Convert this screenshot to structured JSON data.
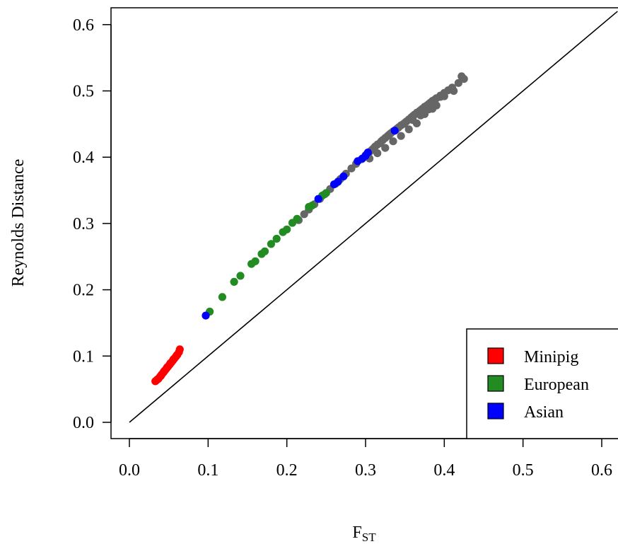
{
  "chart_data": {
    "type": "scatter",
    "title": "",
    "xlabel": "F",
    "xlabel_sub": "ST",
    "ylabel": "Reynolds Distance",
    "xlim": [
      -0.025,
      0.62
    ],
    "ylim": [
      -0.025,
      0.62
    ],
    "xticks": [
      0.0,
      0.1,
      0.2,
      0.3,
      0.4,
      0.5,
      0.6
    ],
    "yticks": [
      0.0,
      0.1,
      0.2,
      0.3,
      0.4,
      0.5,
      0.6
    ],
    "xtick_labels": [
      "0.0",
      "0.1",
      "0.2",
      "0.3",
      "0.4",
      "0.5",
      "0.6"
    ],
    "ytick_labels": [
      "0.0",
      "0.1",
      "0.2",
      "0.3",
      "0.4",
      "0.5",
      "0.6"
    ],
    "grid": false,
    "reference_line": {
      "x": [
        0,
        0.62
      ],
      "y": [
        0,
        0.62
      ],
      "color": "#000000"
    },
    "legend": {
      "position": "bottom-right",
      "entries": [
        "Minipig",
        "European",
        "Asian"
      ]
    },
    "series": [
      {
        "name": "Other",
        "color": "#666666",
        "in_legend": false,
        "x": [
          0.215,
          0.222,
          0.228,
          0.235,
          0.242,
          0.248,
          0.255,
          0.262,
          0.268,
          0.275,
          0.282,
          0.288,
          0.295,
          0.3,
          0.302,
          0.305,
          0.308,
          0.31,
          0.312,
          0.315,
          0.318,
          0.32,
          0.322,
          0.325,
          0.328,
          0.33,
          0.332,
          0.335,
          0.338,
          0.34,
          0.342,
          0.345,
          0.348,
          0.35,
          0.352,
          0.355,
          0.358,
          0.36,
          0.362,
          0.365,
          0.368,
          0.37,
          0.372,
          0.375,
          0.378,
          0.38,
          0.382,
          0.385,
          0.388,
          0.39,
          0.395,
          0.4,
          0.405,
          0.41,
          0.418,
          0.425,
          0.36,
          0.37,
          0.38,
          0.39,
          0.375,
          0.385,
          0.365,
          0.355,
          0.345,
          0.335,
          0.325,
          0.315,
          0.305,
          0.395,
          0.4,
          0.412,
          0.422
        ],
        "y": [
          0.305,
          0.314,
          0.321,
          0.329,
          0.337,
          0.344,
          0.352,
          0.36,
          0.367,
          0.375,
          0.383,
          0.39,
          0.397,
          0.403,
          0.405,
          0.408,
          0.411,
          0.413,
          0.416,
          0.419,
          0.421,
          0.424,
          0.426,
          0.429,
          0.432,
          0.434,
          0.436,
          0.439,
          0.441,
          0.443,
          0.445,
          0.448,
          0.45,
          0.452,
          0.454,
          0.457,
          0.46,
          0.462,
          0.464,
          0.467,
          0.469,
          0.471,
          0.473,
          0.476,
          0.478,
          0.48,
          0.482,
          0.485,
          0.487,
          0.489,
          0.493,
          0.497,
          0.501,
          0.505,
          0.512,
          0.518,
          0.456,
          0.463,
          0.472,
          0.478,
          0.465,
          0.473,
          0.451,
          0.442,
          0.432,
          0.424,
          0.414,
          0.406,
          0.398,
          0.491,
          0.492,
          0.5,
          0.522
        ]
      },
      {
        "name": "Minipig",
        "color": "#ff0000",
        "in_legend": true,
        "x": [
          0.033,
          0.035,
          0.037,
          0.039,
          0.041,
          0.043,
          0.045,
          0.047,
          0.049,
          0.051,
          0.053,
          0.055,
          0.057,
          0.059,
          0.061,
          0.063,
          0.064,
          0.036,
          0.04,
          0.044,
          0.048,
          0.052,
          0.056,
          0.06
        ],
        "y": [
          0.062,
          0.064,
          0.066,
          0.069,
          0.072,
          0.075,
          0.078,
          0.081,
          0.084,
          0.087,
          0.09,
          0.093,
          0.096,
          0.099,
          0.102,
          0.106,
          0.11,
          0.065,
          0.07,
          0.077,
          0.083,
          0.089,
          0.095,
          0.101
        ]
      },
      {
        "name": "European",
        "color": "#228b22",
        "in_legend": true,
        "x": [
          0.102,
          0.118,
          0.133,
          0.141,
          0.155,
          0.16,
          0.168,
          0.172,
          0.18,
          0.187,
          0.195,
          0.2,
          0.207,
          0.213,
          0.228,
          0.232,
          0.245,
          0.25
        ],
        "y": [
          0.167,
          0.189,
          0.212,
          0.221,
          0.239,
          0.243,
          0.254,
          0.258,
          0.269,
          0.277,
          0.287,
          0.291,
          0.301,
          0.307,
          0.325,
          0.327,
          0.342,
          0.346
        ]
      },
      {
        "name": "Asian",
        "color": "#0000ff",
        "in_legend": true,
        "x": [
          0.097,
          0.24,
          0.26,
          0.265,
          0.272,
          0.29,
          0.296,
          0.3,
          0.303,
          0.337
        ],
        "y": [
          0.161,
          0.337,
          0.359,
          0.363,
          0.371,
          0.394,
          0.398,
          0.402,
          0.407,
          0.44
        ]
      }
    ]
  }
}
